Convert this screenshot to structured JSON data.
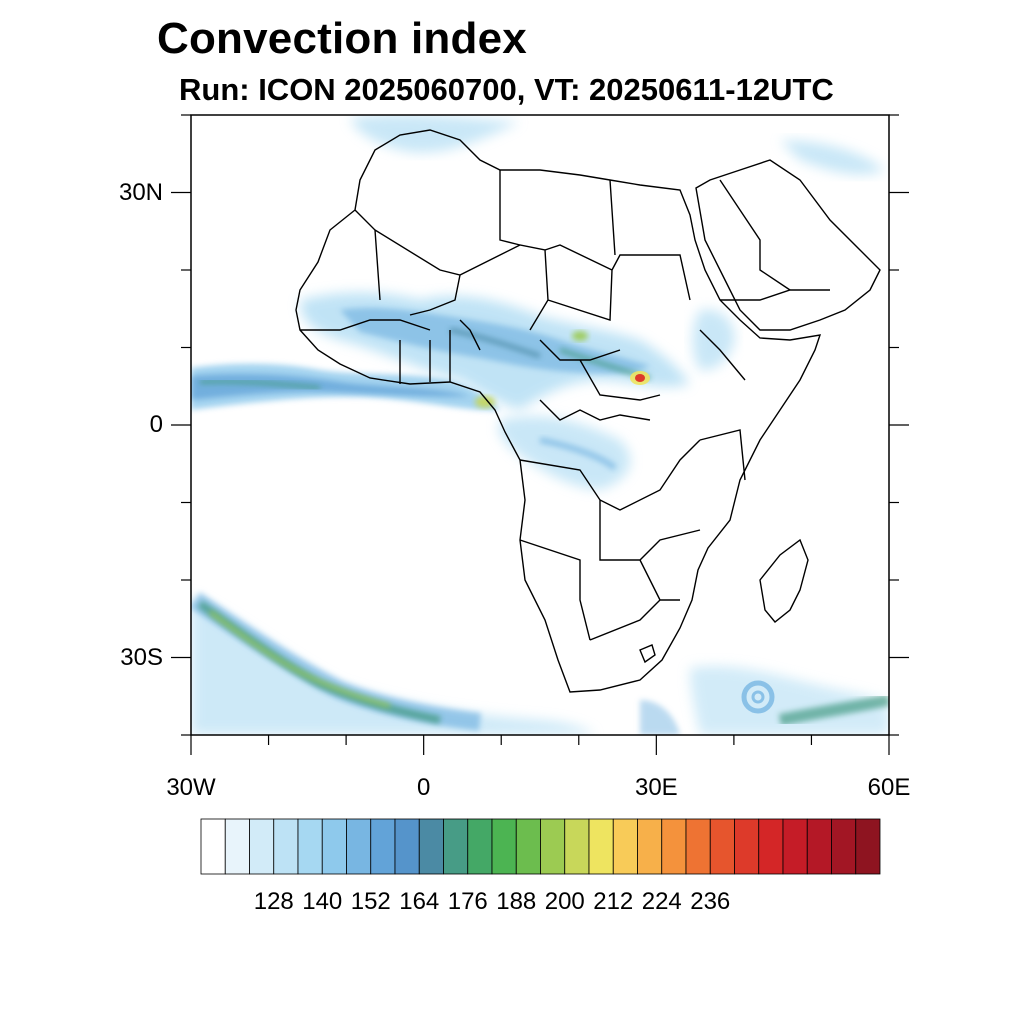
{
  "title": "Convection index",
  "subtitle": "Run: ICON 2025060700,  VT: 20250611-12UTC",
  "map": {
    "lon_range": [
      -30,
      60
    ],
    "lat_range": [
      -40,
      40
    ],
    "lat_ticks": [
      {
        "value": 30,
        "label": "30N"
      },
      {
        "value": 0,
        "label": "0"
      },
      {
        "value": -30,
        "label": "30S"
      }
    ],
    "lon_ticks": [
      {
        "value": -30,
        "label": "30W"
      },
      {
        "value": 0,
        "label": "0"
      },
      {
        "value": 30,
        "label": "30E"
      },
      {
        "value": 60,
        "label": "60E"
      }
    ]
  },
  "colorbar": {
    "labels": [
      "128",
      "140",
      "152",
      "164",
      "176",
      "188",
      "200",
      "212",
      "224",
      "236"
    ],
    "colors": [
      "#ffffff",
      "#e8f4fb",
      "#d2ebf8",
      "#bde2f5",
      "#a6d8f2",
      "#8ec9ec",
      "#78b6e2",
      "#62a3d8",
      "#5594cb",
      "#4b8aa4",
      "#479c86",
      "#44a866",
      "#4cb452",
      "#6cbd4e",
      "#9ccb52",
      "#c8d75a",
      "#eee460",
      "#f8cb58",
      "#f7b04a",
      "#f4923c",
      "#ee7333",
      "#e6552d",
      "#dd3a2a",
      "#d42627",
      "#c51c27",
      "#b41826",
      "#a21624",
      "#8e1420"
    ]
  }
}
